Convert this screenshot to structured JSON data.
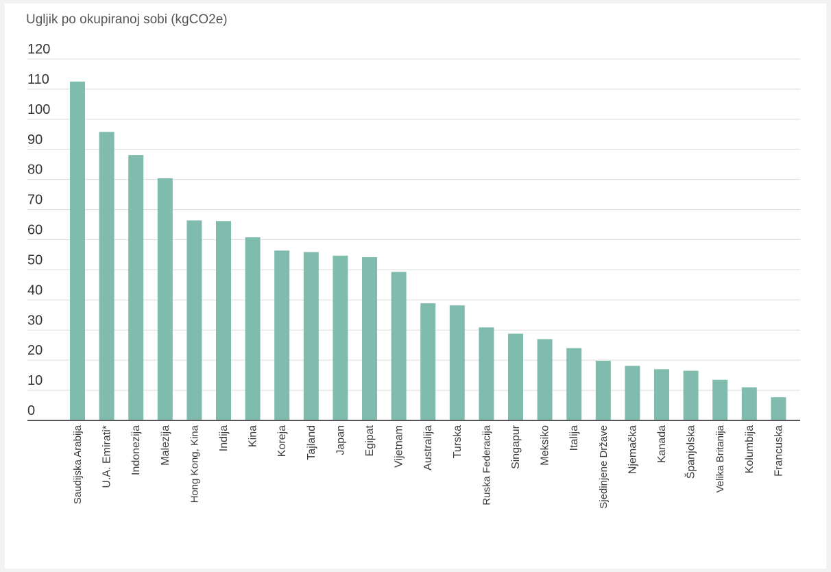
{
  "chart_data": {
    "type": "bar",
    "title": "Ugljik po okupiranoj sobi (kgCO2e)",
    "xlabel": "",
    "ylabel": "",
    "ylim": [
      0,
      120
    ],
    "yticks": [
      0,
      10,
      20,
      30,
      40,
      50,
      60,
      70,
      80,
      90,
      100,
      110,
      120
    ],
    "grid": true,
    "legend": "none",
    "bar_color": "#7fbcad",
    "categories": [
      "Saudijska Arabija",
      "U.A. Emirati*",
      "Indonezija",
      "Malezija",
      "Hong Kong, Kina",
      "Indija",
      "Kina",
      "Koreja",
      "Tajland",
      "Japan",
      "Egipat",
      "Vijetnam",
      "Australija",
      "Turska",
      "Ruska Federacija",
      "Singapur",
      "Meksiko",
      "Italija",
      "Sjedinjene Države",
      "Njemačka",
      "Kanada",
      "Španjolska",
      "Velika Britanija",
      "Kolumbija",
      "Francuska"
    ],
    "values": [
      112.5,
      95.8,
      88.1,
      80.4,
      66.4,
      66.2,
      60.8,
      56.4,
      55.9,
      54.7,
      54.2,
      49.3,
      38.9,
      38.2,
      30.9,
      28.8,
      27.0,
      24.0,
      19.8,
      18.1,
      17.0,
      16.5,
      13.5,
      11.0,
      7.7
    ]
  }
}
